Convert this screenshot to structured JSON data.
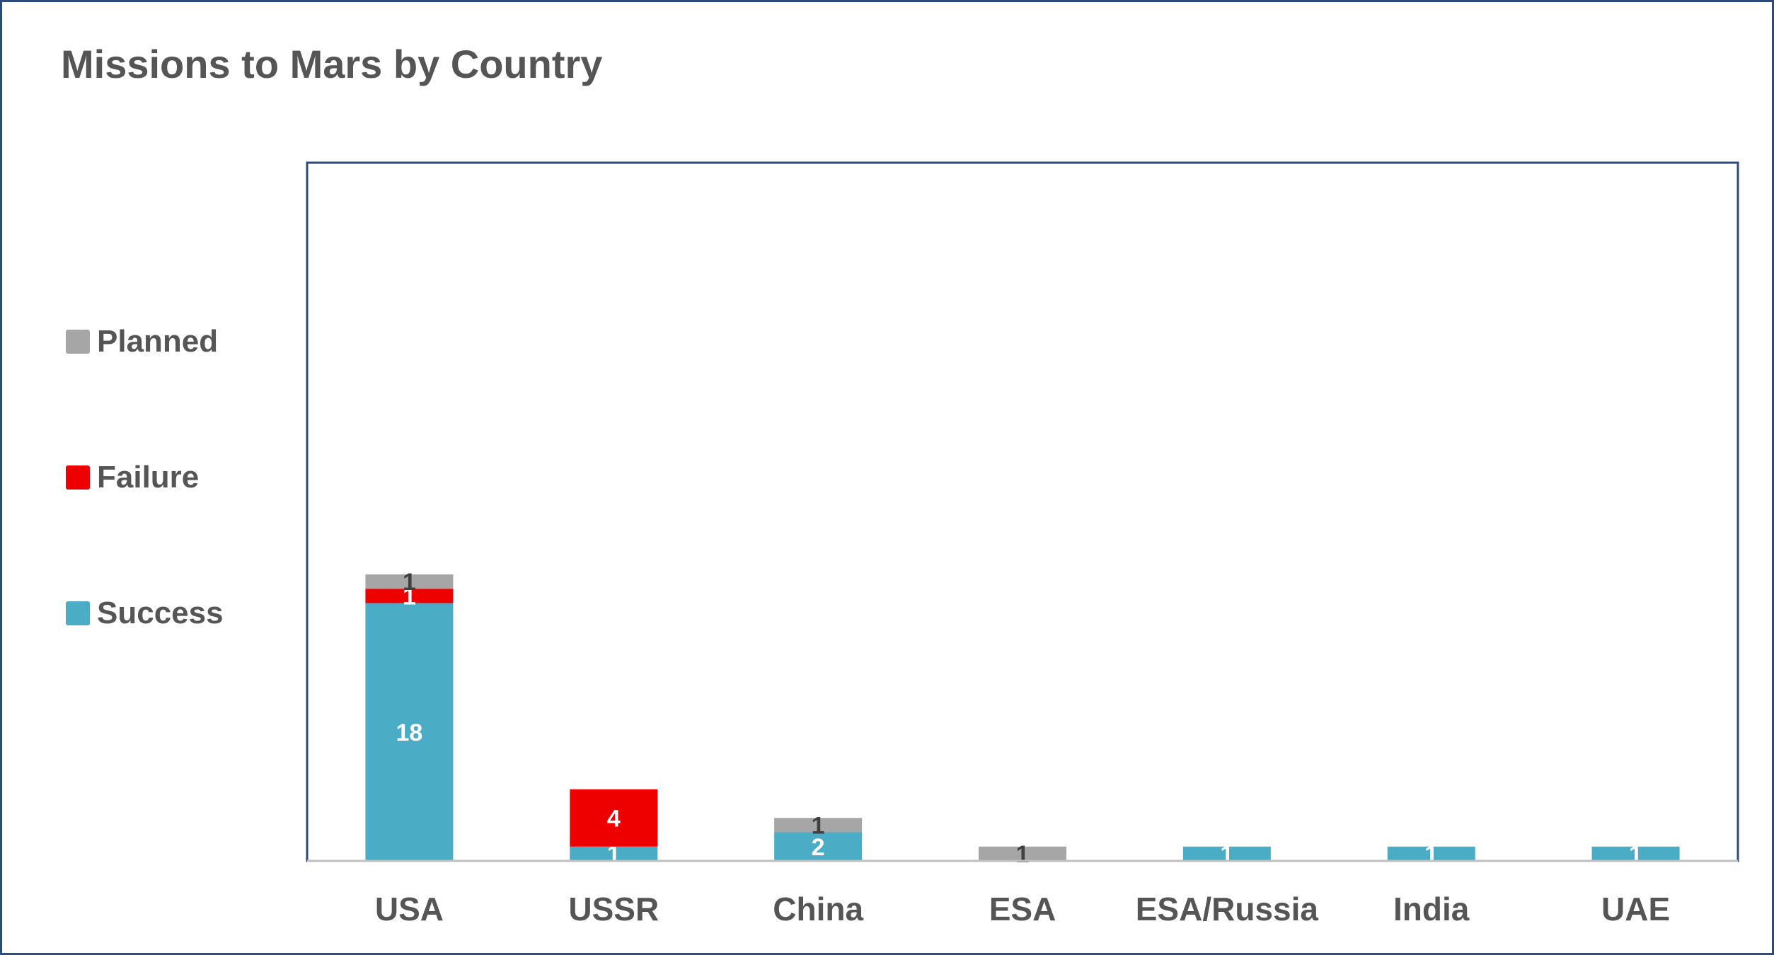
{
  "chart_data": {
    "type": "bar",
    "stacked": true,
    "title": "Missions to Mars by Country",
    "xlabel": "",
    "ylabel": "",
    "categories": [
      "USA",
      "USSR",
      "China",
      "ESA",
      "ESA/Russia",
      "India",
      "UAE"
    ],
    "series": [
      {
        "name": "Success",
        "color": "#4bacc6",
        "label_color": "#ffffff",
        "values": [
          18,
          1,
          2,
          0,
          1,
          1,
          1
        ]
      },
      {
        "name": "Failure",
        "color": "#ee0000",
        "label_color": "#ffffff",
        "values": [
          1,
          4,
          0,
          0,
          0,
          0,
          0
        ]
      },
      {
        "name": "Planned",
        "color": "#a6a6a6",
        "label_color": "#404040",
        "values": [
          1,
          0,
          1,
          1,
          0,
          0,
          0
        ]
      }
    ],
    "ylim": [
      0,
      24
    ],
    "grid": false,
    "legend_position": "left",
    "legend_order": [
      "Planned",
      "Failure",
      "Success"
    ]
  }
}
